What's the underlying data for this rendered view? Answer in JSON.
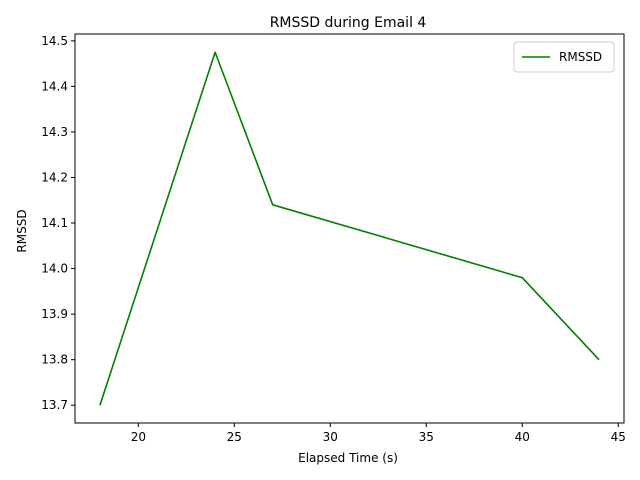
{
  "chart_data": {
    "type": "line",
    "title": "RMSSD during Email 4",
    "xlabel": "Elapsed Time (s)",
    "ylabel": "RMSSD",
    "xlim": [
      16.7,
      45.3
    ],
    "ylim": [
      13.661,
      14.515
    ],
    "xticks": [
      20,
      25,
      30,
      35,
      40,
      45
    ],
    "yticks": [
      13.7,
      13.8,
      13.9,
      14.0,
      14.1,
      14.2,
      14.3,
      14.4,
      14.5
    ],
    "grid": false,
    "legend_position": "top-right",
    "series": [
      {
        "name": "RMSSD",
        "color": "#008000",
        "x": [
          18,
          24,
          27,
          40,
          44
        ],
        "y": [
          13.7,
          14.475,
          14.14,
          13.98,
          13.8
        ]
      }
    ]
  }
}
